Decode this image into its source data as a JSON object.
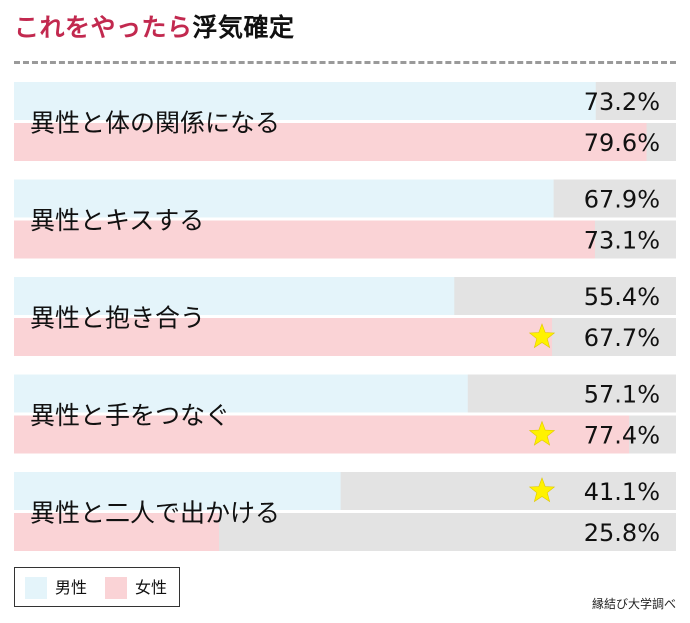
{
  "title": {
    "highlight": "これをやったら",
    "rest": "浮気確定"
  },
  "colors": {
    "male": "#e4f4fa",
    "female": "#fad3d6",
    "track": "#e3e3e3",
    "star": "#fff200",
    "accent": "#c2294f"
  },
  "chart_data": {
    "type": "bar",
    "orientation": "horizontal",
    "categories": [
      "異性と体の関係になる",
      "異性とキスする",
      "異性と抱き合う",
      "異性と手をつなぐ",
      "異性と二人で出かける"
    ],
    "series": [
      {
        "name": "男性",
        "values": [
          73.2,
          67.9,
          55.4,
          57.1,
          41.1
        ],
        "labels": [
          "73.2%",
          "67.9%",
          "55.4%",
          "57.1%",
          "41.1%"
        ]
      },
      {
        "name": "女性",
        "values": [
          79.6,
          73.1,
          67.7,
          77.4,
          25.8
        ],
        "labels": [
          "79.6%",
          "73.1%",
          "67.7%",
          "77.4%",
          "25.8%"
        ]
      }
    ],
    "xlim": [
      0,
      83.3
    ],
    "stars": [
      {
        "category": 2,
        "series": 1
      },
      {
        "category": 3,
        "series": 1
      },
      {
        "category": 4,
        "series": 0
      }
    ],
    "legend": {
      "position": "bottom-left",
      "male": "男性",
      "female": "女性"
    },
    "source": "縁結び大学調べ"
  }
}
